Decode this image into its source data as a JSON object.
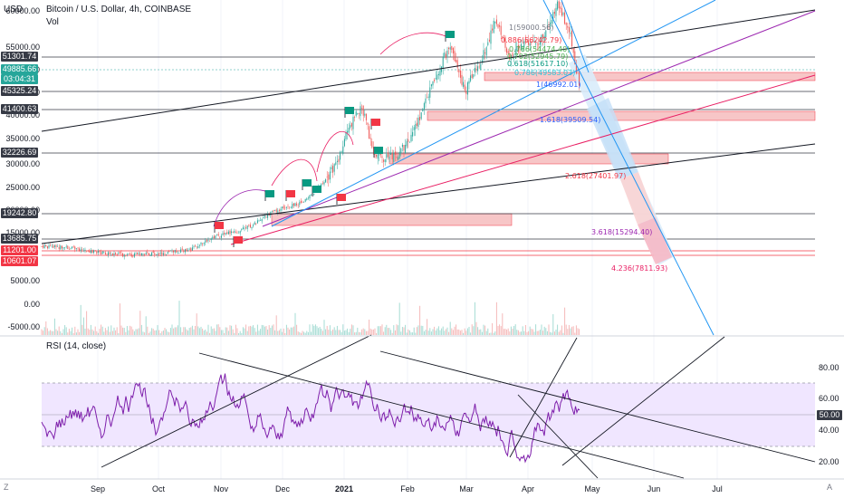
{
  "header": {
    "currency": "USD",
    "symbol_line": "Bitcoin / U.S. Dollar, 4h, COINBASE",
    "volume_label": "Vol"
  },
  "price_axis": {
    "ticks": [
      "60000.00",
      "55000.00",
      "50000.00",
      "45000.00",
      "40000.00",
      "35000.00",
      "30000.00",
      "25000.00",
      "20000.00",
      "15000.00",
      "5000.00",
      "0.00",
      "-5000.00"
    ],
    "price_labels": [
      {
        "text": "51301.74",
        "color": "#363a45"
      },
      {
        "text": "49885.66",
        "color": "#26a69a"
      },
      {
        "text": "03:04:31",
        "color": "#26a69a"
      },
      {
        "text": "45325.24",
        "color": "#363a45"
      },
      {
        "text": "41400.63",
        "color": "#363a45"
      },
      {
        "text": "32226.69",
        "color": "#363a45"
      },
      {
        "text": "19242.80",
        "color": "#363a45"
      },
      {
        "text": "13685.75",
        "color": "#363a45"
      },
      {
        "text": "11201.00",
        "color": "#f23645"
      },
      {
        "text": "10601.07",
        "color": "#f23645"
      }
    ]
  },
  "rsi": {
    "title": "RSI (14, close)",
    "ticks": [
      "80.00",
      "60.00",
      "40.00",
      "20.00"
    ],
    "current": "50.00"
  },
  "time_axis": {
    "labels": [
      {
        "text": "Sep",
        "bold": false
      },
      {
        "text": "Oct",
        "bold": false
      },
      {
        "text": "Nov",
        "bold": false
      },
      {
        "text": "Dec",
        "bold": false
      },
      {
        "text": "2021",
        "bold": true
      },
      {
        "text": "Feb",
        "bold": false
      },
      {
        "text": "Mar",
        "bold": false
      },
      {
        "text": "Apr",
        "bold": false
      },
      {
        "text": "May",
        "bold": false
      },
      {
        "text": "Jun",
        "bold": false
      },
      {
        "text": "Jul",
        "bold": false
      }
    ],
    "left_button": "Z",
    "right_button": "A"
  },
  "fib_labels": [
    {
      "text": "1(59000.56)",
      "color": "#787b86"
    },
    {
      "text": "0.886(56242.79)",
      "color": "#f23645"
    },
    {
      "text": "0.786(54474.40)",
      "color": "#4caf50"
    },
    {
      "text": "0.702(52945.79)",
      "color": "#4caf50"
    },
    {
      "text": "0.618(51617.10)",
      "color": "#089981"
    },
    {
      "text": "0.786(49583.03)",
      "color": "#26c6da"
    },
    {
      "text": "1(46992.01)",
      "color": "#2962ff"
    },
    {
      "text": "1.618(39509.54)",
      "color": "#2962ff"
    },
    {
      "text": "2.618(27401.97)",
      "color": "#f23645"
    },
    {
      "text": "3.618(15294.40)",
      "color": "#9c27b0"
    },
    {
      "text": "4.236(7811.93)",
      "color": "#e91e63"
    }
  ],
  "colors": {
    "up": "#26a69a",
    "down": "#ef5350",
    "rsi_line": "#7e1fab",
    "rsi_band": "#f0e6ff",
    "trend_line": "#131722",
    "pink_line": "#e91e63",
    "purple_line": "#9c27b0",
    "blue_line": "#2196f3",
    "zone": "#f7c6c7"
  },
  "flags": [
    {
      "color": "#f23645"
    },
    {
      "color": "#f23645"
    },
    {
      "color": "#089981"
    },
    {
      "color": "#f23645"
    },
    {
      "color": "#089981"
    },
    {
      "color": "#089981"
    },
    {
      "color": "#f23645"
    },
    {
      "color": "#089981"
    },
    {
      "color": "#f23645"
    },
    {
      "color": "#089981"
    },
    {
      "color": "#089981"
    }
  ]
}
